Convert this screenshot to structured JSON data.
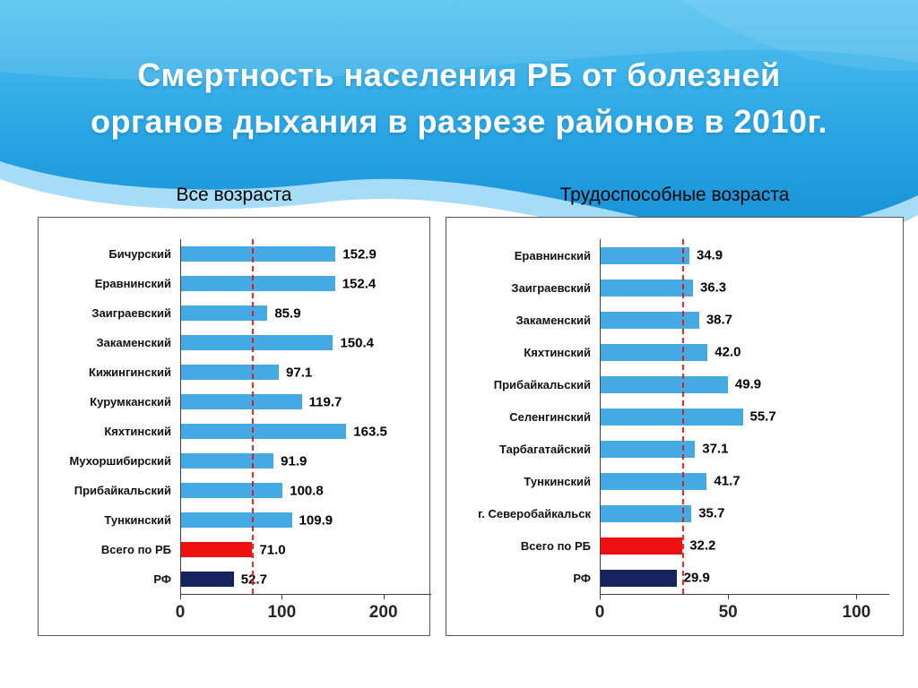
{
  "slide": {
    "title_line1": "Смертность населения РБ от болезней",
    "title_line2": "органов дыхания в разрезе районов в 2010г.",
    "background_colors": {
      "header_top": "#55c3f1",
      "header_bottom": "#1792d6",
      "wave_band": "#a6dcf5"
    }
  },
  "chart_data": [
    {
      "type": "bar",
      "orientation": "horizontal",
      "title": "Все возраста",
      "categories": [
        "Бичурский",
        "Еравнинский",
        "Заиграевский",
        "Закаменский",
        "Кижингинский",
        "Курумканский",
        "Кяхтинский",
        "Мухоршибирский",
        "Прибайкальский",
        "Тункинский",
        "Всего по РБ",
        "РФ"
      ],
      "values": [
        152.9,
        152.4,
        85.9,
        150.4,
        97.1,
        119.7,
        163.5,
        91.9,
        100.8,
        109.9,
        71.0,
        52.7
      ],
      "colors": [
        "#43aae3",
        "#43aae3",
        "#43aae3",
        "#43aae3",
        "#43aae3",
        "#43aae3",
        "#43aae3",
        "#43aae3",
        "#43aae3",
        "#43aae3",
        "#ee1111",
        "#16245e"
      ],
      "xlim": [
        0,
        240
      ],
      "xticks": [
        0,
        100,
        200
      ],
      "ref_line": 71.0,
      "ref_line_color": "#ff0000",
      "grid": false,
      "legend": false
    },
    {
      "type": "bar",
      "orientation": "horizontal",
      "title": "Трудоспособные возраста",
      "categories": [
        "Еравнинский",
        "Заиграевский",
        "Закаменский",
        "Кяхтинский",
        "Прибайкальский",
        "Селенгинский",
        "Тарбагатайский",
        "Тункинский",
        "г. Северобайкальск",
        "Всего по РБ",
        "РФ"
      ],
      "values": [
        34.9,
        36.3,
        38.7,
        42.0,
        49.9,
        55.7,
        37.1,
        41.7,
        35.7,
        32.2,
        29.9
      ],
      "colors": [
        "#43aae3",
        "#43aae3",
        "#43aae3",
        "#43aae3",
        "#43aae3",
        "#43aae3",
        "#43aae3",
        "#43aae3",
        "#43aae3",
        "#ee1111",
        "#16245e"
      ],
      "xlim": [
        0,
        110
      ],
      "xticks": [
        0,
        50,
        100
      ],
      "ref_line": 32.2,
      "ref_line_color": "#ff0000",
      "grid": false,
      "legend": false
    }
  ]
}
